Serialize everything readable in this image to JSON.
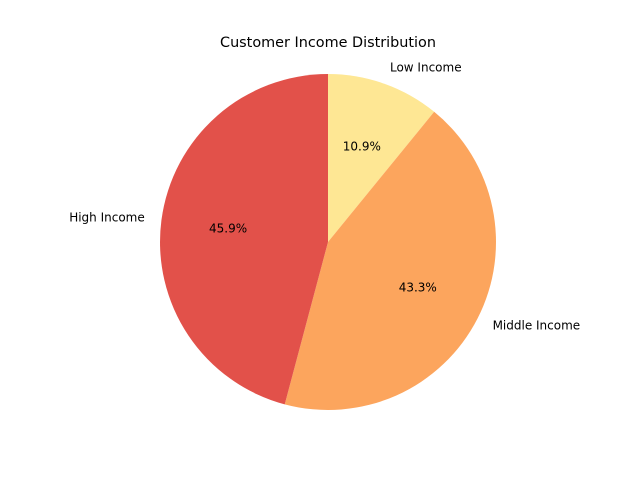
{
  "chart_data": {
    "type": "pie",
    "title": "Customer Income Distribution",
    "categories": [
      "Low Income",
      "Middle Income",
      "High Income"
    ],
    "values": [
      10.9,
      43.3,
      45.9
    ],
    "percent_labels": [
      "10.9%",
      "43.3%",
      "45.9%"
    ],
    "colors": [
      "#fee794",
      "#fca55d",
      "#e2514a"
    ],
    "start_angle_deg": 90,
    "direction": "clockwise",
    "legend": "none"
  }
}
